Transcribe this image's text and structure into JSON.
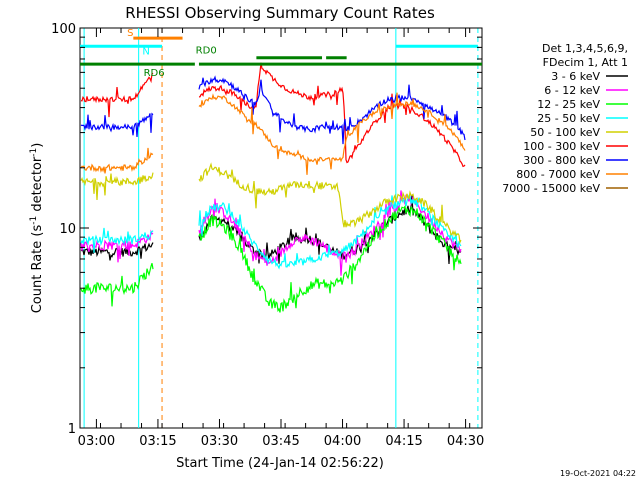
{
  "chart_data": {
    "type": "line",
    "title": "RHESSI Observing Summary Count Rates",
    "xlabel": "Start Time (24-Jan-14 02:56:22)",
    "ylabel": "Count Rate (s",
    "ylabel_sup": "-1",
    "ylabel_tail": " detector",
    "ylabel_end": ")",
    "yscale": "log",
    "ylim": [
      1,
      100
    ],
    "xlim_min": [
      176,
      274
    ],
    "y_ticks": [
      {
        "value": 1,
        "label": "1"
      },
      {
        "value": 10,
        "label": "10"
      },
      {
        "value": 100,
        "label": "100"
      }
    ],
    "x_ticks": [
      {
        "value": 180,
        "label": "03:00"
      },
      {
        "value": 195,
        "label": "03:15"
      },
      {
        "value": 210,
        "label": "03:30"
      },
      {
        "value": 225,
        "label": "03:45"
      },
      {
        "value": 240,
        "label": "04:00"
      },
      {
        "value": 255,
        "label": "04:15"
      },
      {
        "value": 270,
        "label": "04:30"
      }
    ],
    "legend_header": [
      "Det 1,3,4,5,6,9,",
      "FDecim 1, Att 1"
    ],
    "legend_placement": "right",
    "series": [
      {
        "name": "3 - 6 keV",
        "color": "#000000",
        "amp": 0.6,
        "knots": [
          [
            176,
            7.6
          ],
          [
            189,
            7.6
          ],
          [
            194,
            8.3
          ],
          [
            197,
            null
          ],
          [
            202,
            null
          ],
          [
            205,
            8.8
          ],
          [
            208,
            11
          ],
          [
            211,
            11
          ],
          [
            214,
            9.5
          ],
          [
            218,
            7.8
          ],
          [
            222,
            7.2
          ],
          [
            225,
            8
          ],
          [
            228,
            8.8
          ],
          [
            231,
            9
          ],
          [
            234,
            8.5
          ],
          [
            237,
            7.8
          ],
          [
            240,
            7.3
          ],
          [
            243,
            7.8
          ],
          [
            247,
            9
          ],
          [
            251,
            10.7
          ],
          [
            254,
            11.8
          ],
          [
            256,
            12.4
          ],
          [
            258,
            11.8
          ],
          [
            261,
            10
          ],
          [
            265,
            8.2
          ],
          [
            269,
            7.3
          ],
          [
            274,
            null
          ]
        ]
      },
      {
        "name": "6 - 12 keV",
        "color": "#ff00ff",
        "amp": 0.6,
        "knots": [
          [
            176,
            8.2
          ],
          [
            189,
            8.2
          ],
          [
            194,
            9.3
          ],
          [
            197,
            null
          ],
          [
            202,
            null
          ],
          [
            205,
            9.5
          ],
          [
            208,
            12.5
          ],
          [
            211,
            12
          ],
          [
            214,
            10.2
          ],
          [
            218,
            7.5
          ],
          [
            222,
            6.6
          ],
          [
            225,
            7.5
          ],
          [
            228,
            8.7
          ],
          [
            231,
            8.9
          ],
          [
            234,
            8.5
          ],
          [
            237,
            7.7
          ],
          [
            240,
            7.1
          ],
          [
            243,
            7.7
          ],
          [
            247,
            9.4
          ],
          [
            251,
            11.9
          ],
          [
            254,
            13.2
          ],
          [
            256,
            14.2
          ],
          [
            258,
            13.2
          ],
          [
            261,
            11.2
          ],
          [
            265,
            9.1
          ],
          [
            269,
            7.6
          ],
          [
            274,
            null
          ]
        ]
      },
      {
        "name": "12 - 25 keV",
        "color": "#00ff00",
        "amp": 0.7,
        "knots": [
          [
            176,
            5
          ],
          [
            189,
            5
          ],
          [
            194,
            6.5
          ],
          [
            197,
            null
          ],
          [
            202,
            null
          ],
          [
            205,
            8.5
          ],
          [
            208,
            11
          ],
          [
            211,
            10.2
          ],
          [
            214,
            8.5
          ],
          [
            218,
            5.8
          ],
          [
            222,
            4.2
          ],
          [
            225,
            4
          ],
          [
            228,
            4.5
          ],
          [
            231,
            5
          ],
          [
            234,
            5.3
          ],
          [
            237,
            5.2
          ],
          [
            240,
            5.5
          ],
          [
            243,
            6.5
          ],
          [
            247,
            8.6
          ],
          [
            251,
            10.8
          ],
          [
            254,
            12.2
          ],
          [
            256,
            12.4
          ],
          [
            258,
            12
          ],
          [
            261,
            10.2
          ],
          [
            265,
            8.2
          ],
          [
            269,
            6.5
          ],
          [
            274,
            null
          ]
        ]
      },
      {
        "name": "25 - 50 keV",
        "color": "#00ffff",
        "amp": 0.5,
        "knots": [
          [
            176,
            8.7
          ],
          [
            189,
            8.7
          ],
          [
            194,
            9.5
          ],
          [
            197,
            null
          ],
          [
            202,
            null
          ],
          [
            205,
            10
          ],
          [
            208,
            12.6
          ],
          [
            211,
            12.8
          ],
          [
            214,
            11
          ],
          [
            218,
            8.5
          ],
          [
            222,
            6.9
          ],
          [
            225,
            6.5
          ],
          [
            228,
            6.6
          ],
          [
            231,
            6.8
          ],
          [
            234,
            7.1
          ],
          [
            237,
            7.4
          ],
          [
            240,
            7.6
          ],
          [
            243,
            8.5
          ],
          [
            247,
            10.4
          ],
          [
            251,
            12.4
          ],
          [
            254,
            13.5
          ],
          [
            256,
            14
          ],
          [
            258,
            13.5
          ],
          [
            261,
            11.8
          ],
          [
            265,
            9.5
          ],
          [
            269,
            8
          ],
          [
            274,
            null
          ]
        ]
      },
      {
        "name": "50 - 100 keV",
        "color": "#d0d000",
        "amp": 0.5,
        "knots": [
          [
            176,
            17
          ],
          [
            189,
            17
          ],
          [
            194,
            18.5
          ],
          [
            197,
            null
          ],
          [
            202,
            null
          ],
          [
            205,
            17.5
          ],
          [
            208,
            20
          ],
          [
            211,
            19
          ],
          [
            214,
            17
          ],
          [
            218,
            15.5
          ],
          [
            222,
            15
          ],
          [
            226,
            16
          ],
          [
            229,
            16.5
          ],
          [
            233,
            16.5
          ],
          [
            237,
            16
          ],
          [
            239,
            16
          ],
          [
            240,
            10.5
          ],
          [
            243,
            10.5
          ],
          [
            247,
            12
          ],
          [
            251,
            13.7
          ],
          [
            254,
            14.2
          ],
          [
            256,
            14.5
          ],
          [
            258,
            14.2
          ],
          [
            261,
            12.7
          ],
          [
            265,
            10.3
          ],
          [
            269,
            8.6
          ],
          [
            274,
            null
          ]
        ]
      },
      {
        "name": "100 - 300 keV",
        "color": "#ff0000",
        "amp": 0.5,
        "knots": [
          [
            176,
            44
          ],
          [
            189,
            44
          ],
          [
            192,
            53
          ],
          [
            194,
            60
          ],
          [
            196,
            null
          ],
          [
            202,
            null
          ],
          [
            205,
            46
          ],
          [
            208,
            50
          ],
          [
            211,
            50
          ],
          [
            214,
            46
          ],
          [
            217,
            41
          ],
          [
            219,
            40
          ],
          [
            220,
            65
          ],
          [
            223,
            56
          ],
          [
            226,
            50
          ],
          [
            229,
            47
          ],
          [
            232,
            45
          ],
          [
            235,
            46
          ],
          [
            238,
            47
          ],
          [
            240,
            50
          ],
          [
            241,
            21
          ],
          [
            244,
            26
          ],
          [
            248,
            34
          ],
          [
            251,
            40
          ],
          [
            254,
            41
          ],
          [
            256,
            40
          ],
          [
            258,
            38
          ],
          [
            261,
            34
          ],
          [
            265,
            28
          ],
          [
            268,
            23
          ],
          [
            270,
            20
          ],
          [
            274,
            null
          ]
        ]
      },
      {
        "name": "300 - 800 keV",
        "color": "#0000ff",
        "amp": 0.5,
        "knots": [
          [
            176,
            32
          ],
          [
            189,
            32
          ],
          [
            192,
            35
          ],
          [
            194,
            38
          ],
          [
            196,
            null
          ],
          [
            202,
            null
          ],
          [
            205,
            50
          ],
          [
            208,
            55
          ],
          [
            211,
            55
          ],
          [
            214,
            50
          ],
          [
            217,
            44
          ],
          [
            219,
            42
          ],
          [
            220,
            50
          ],
          [
            223,
            38
          ],
          [
            226,
            34
          ],
          [
            229,
            32
          ],
          [
            232,
            31
          ],
          [
            235,
            32
          ],
          [
            238,
            32
          ],
          [
            240,
            32
          ],
          [
            241,
            31
          ],
          [
            244,
            34
          ],
          [
            248,
            40
          ],
          [
            251,
            44
          ],
          [
            254,
            45
          ],
          [
            256,
            45
          ],
          [
            258,
            44
          ],
          [
            261,
            40
          ],
          [
            265,
            36
          ],
          [
            268,
            32
          ],
          [
            270,
            28
          ],
          [
            274,
            null
          ]
        ]
      },
      {
        "name": "800 - 7000 keV",
        "color": "#ff8000",
        "amp": 0.4,
        "knots": [
          [
            176,
            20
          ],
          [
            189,
            20
          ],
          [
            192,
            22
          ],
          [
            194,
            24
          ],
          [
            196,
            null
          ],
          [
            202,
            null
          ],
          [
            205,
            40
          ],
          [
            208,
            45
          ],
          [
            211,
            45
          ],
          [
            214,
            40
          ],
          [
            217,
            35
          ],
          [
            219,
            33
          ],
          [
            220,
            31
          ],
          [
            223,
            26
          ],
          [
            226,
            24
          ],
          [
            229,
            23
          ],
          [
            232,
            22
          ],
          [
            235,
            22
          ],
          [
            238,
            22
          ],
          [
            240,
            22
          ],
          [
            241,
            28
          ],
          [
            244,
            33
          ],
          [
            248,
            38
          ],
          [
            251,
            40
          ],
          [
            254,
            42
          ],
          [
            256,
            42
          ],
          [
            258,
            41
          ],
          [
            261,
            38
          ],
          [
            265,
            33
          ],
          [
            268,
            28
          ],
          [
            270,
            24
          ],
          [
            274,
            null
          ]
        ]
      },
      {
        "name": "7000 - 15000 keV",
        "color": "#a06000",
        "amp": 0.0,
        "knots": []
      }
    ],
    "state_bars": [
      {
        "label": "S",
        "color": "#ff8000",
        "level": 89,
        "segments": [
          [
            189,
            201
          ]
        ]
      },
      {
        "label": "N",
        "color": "#00ffff",
        "level": 81,
        "segments": [
          [
            176,
            190
          ],
          [
            190,
            196
          ],
          [
            253,
            273
          ]
        ]
      },
      {
        "label": "RD6",
        "color": "#008000",
        "level": 66,
        "segments": [
          [
            176,
            204
          ],
          [
            205,
            274
          ]
        ]
      },
      {
        "label": "RD0",
        "color": "#008000",
        "level": 71,
        "segments": [
          [
            219,
            235
          ],
          [
            236,
            241
          ]
        ]
      }
    ],
    "vertical_markers": [
      {
        "x": 190.3,
        "color": "#00ffff",
        "style": "solid"
      },
      {
        "x": 196.0,
        "color": "#ff8000",
        "style": "dashed"
      },
      {
        "x": 177.0,
        "color": "#00ffff",
        "style": "solid"
      },
      {
        "x": 253.0,
        "color": "#00ffff",
        "style": "solid"
      },
      {
        "x": 273.0,
        "color": "#00ffff",
        "style": "dashed"
      }
    ],
    "timestamp": "19-Oct-2021 04:22"
  }
}
